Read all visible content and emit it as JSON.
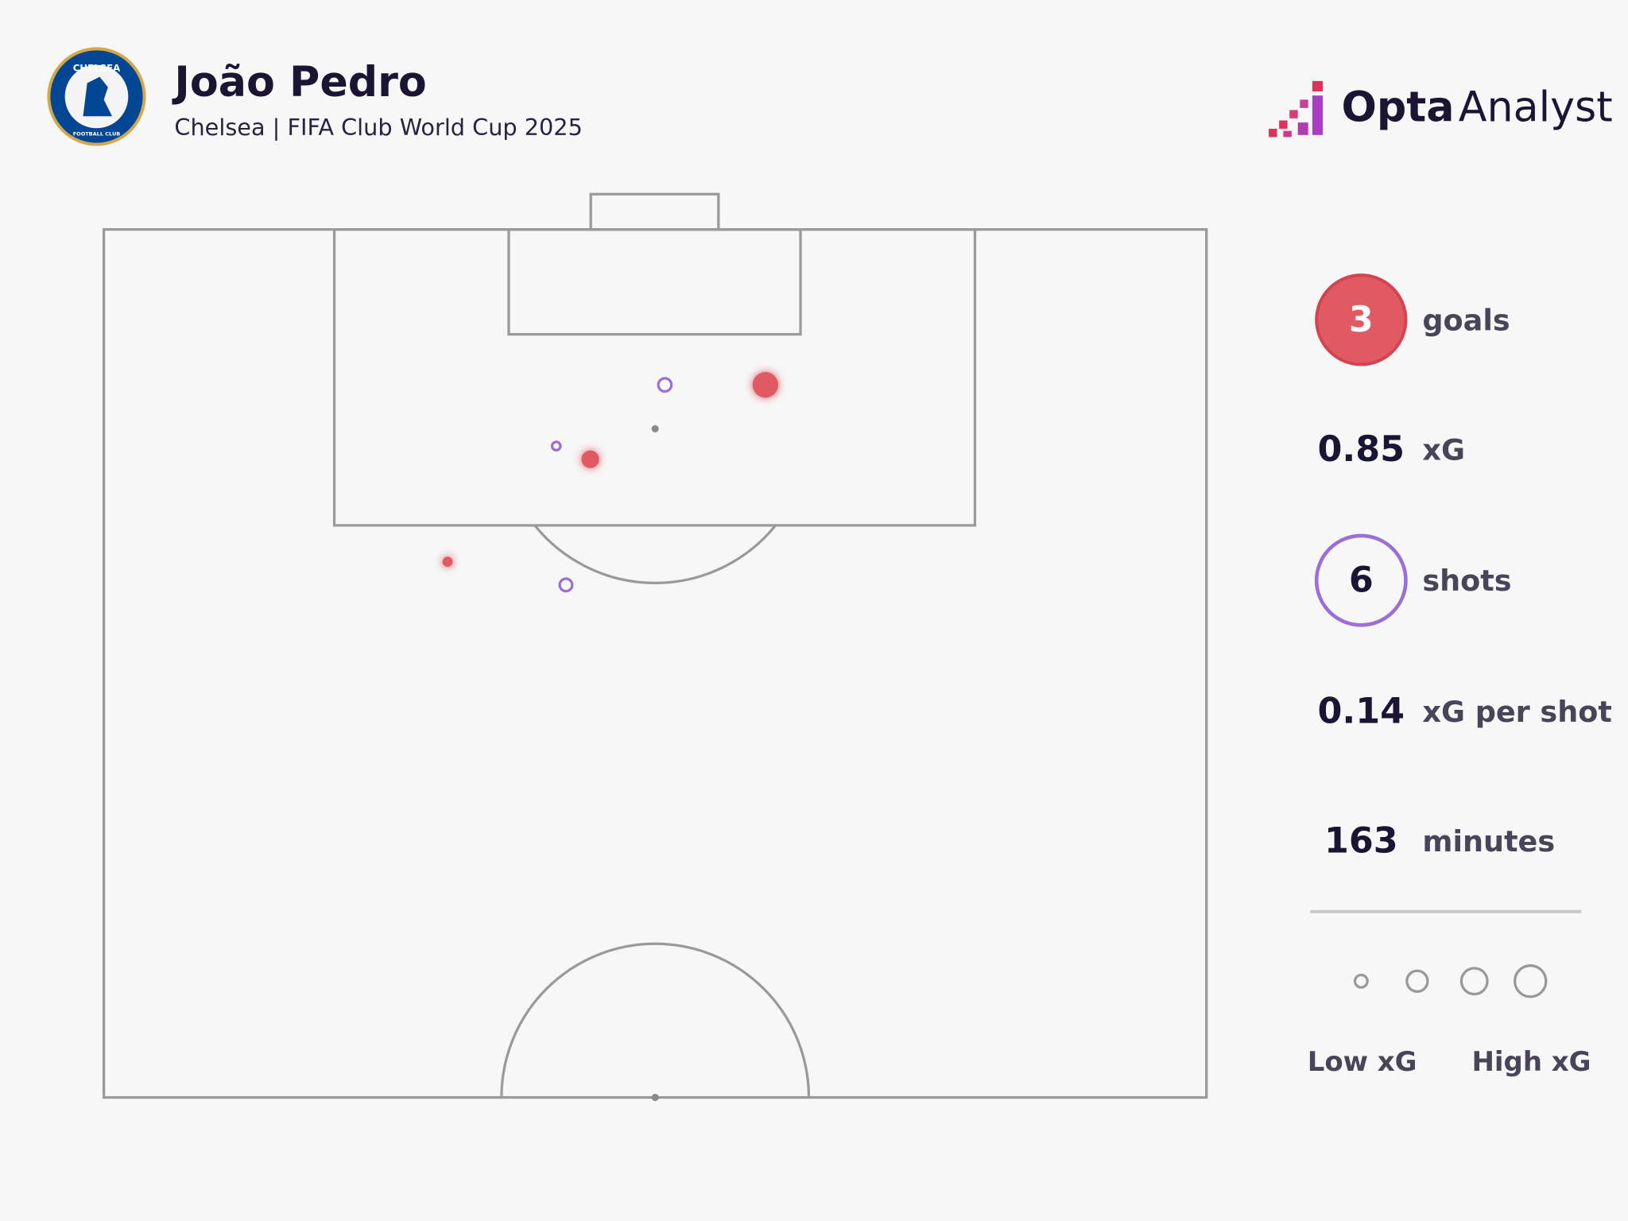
{
  "title": "João Pedro",
  "subtitle": "Chelsea | FIFA Club World Cup 2025",
  "badge": {
    "top": "CHELSEA",
    "bottom": "FOOTBALL CLUB"
  },
  "logo": {
    "bold": "Opta",
    "light": "Analyst"
  },
  "chart_data": {
    "type": "scatter",
    "xlim": [
      0,
      68
    ],
    "ylim": [
      0,
      52.5
    ],
    "series": [
      {
        "color": "#e05a64",
        "filled": true,
        "x": [
          40.8,
          30.0,
          21.2
        ],
        "y": [
          9.4,
          13.9,
          20.1
        ],
        "sizes": [
          0.38,
          0.18,
          0.06
        ]
      },
      {
        "color": "#9b6fd6",
        "filled": false,
        "x": [
          34.6,
          27.9,
          28.5
        ],
        "y": [
          9.4,
          13.1,
          21.5
        ],
        "sizes": [
          0.1,
          0.04,
          0.09
        ]
      }
    ]
  },
  "stats": [
    {
      "value": 3,
      "label": "goals"
    },
    {
      "value": 0.85,
      "label": "xG"
    },
    {
      "value": 6,
      "label": "shots"
    },
    {
      "value": 0.14,
      "label": "xG per shot"
    },
    {
      "value": 163,
      "label": "minutes"
    }
  ],
  "legend": {
    "low": "Low xG",
    "high": "High xG"
  }
}
